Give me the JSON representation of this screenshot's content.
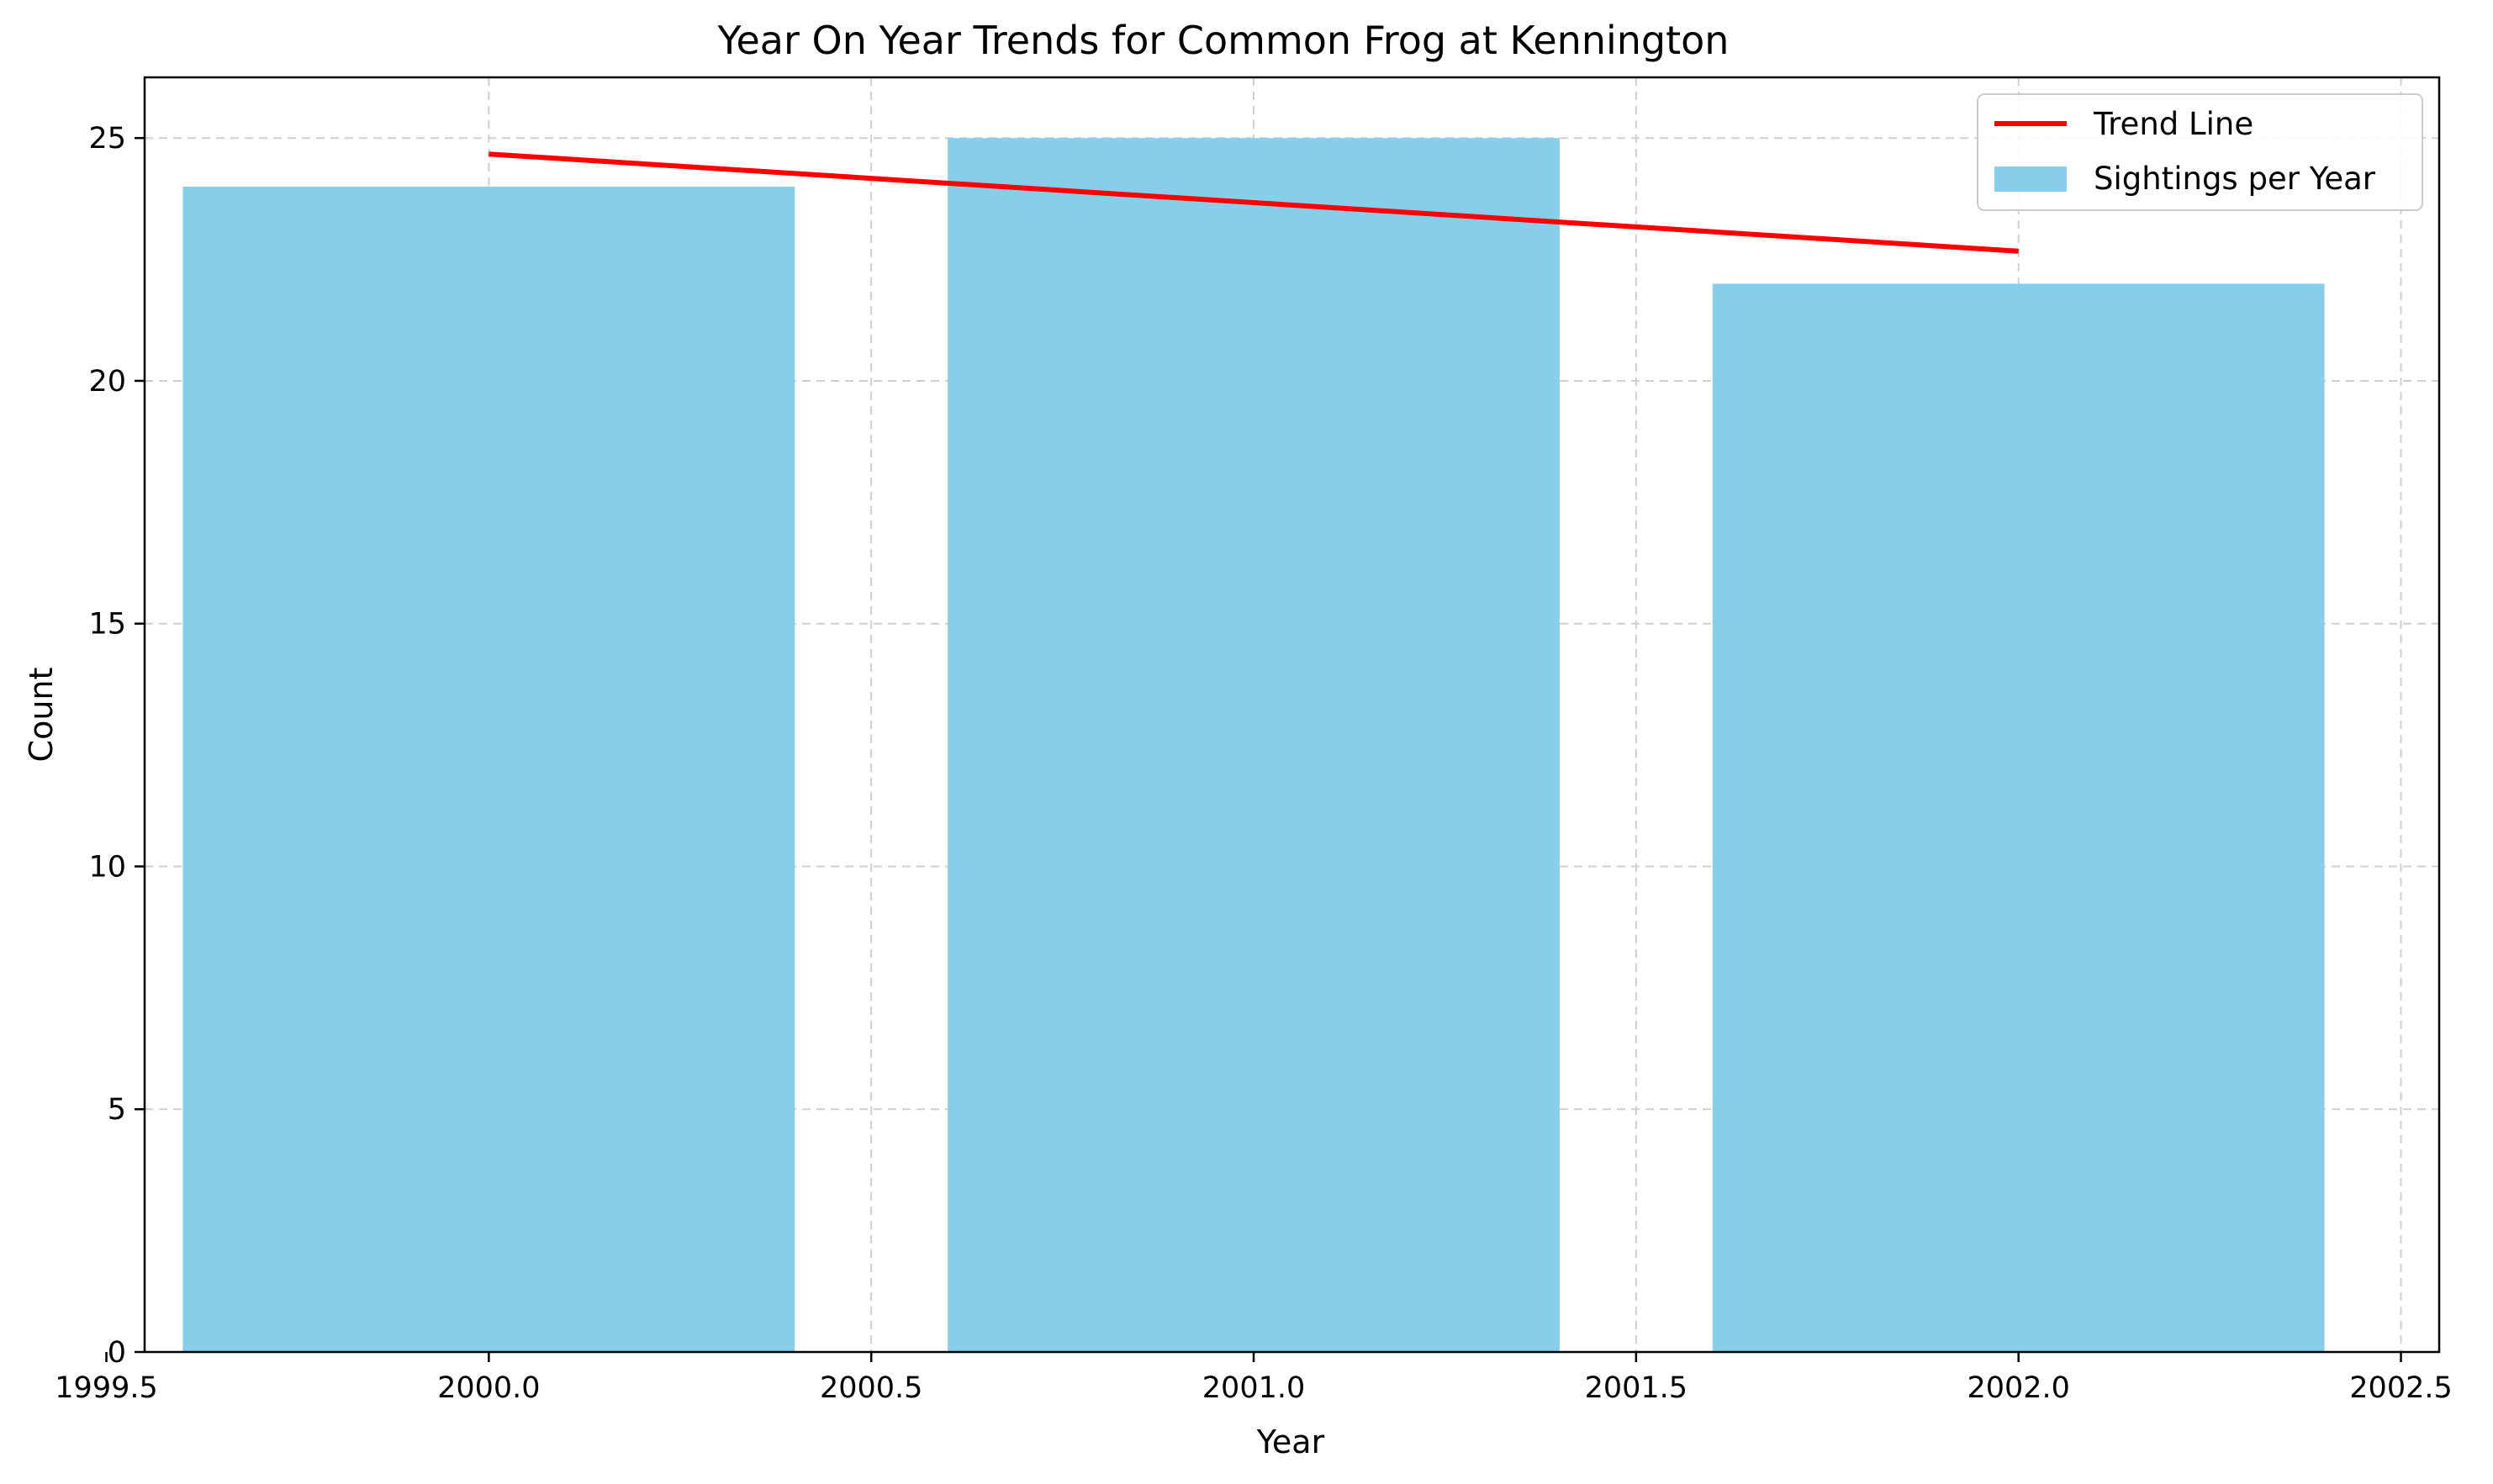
{
  "chart_data": {
    "type": "bar",
    "title": "Year On Year Trends for Common Frog at Kennington",
    "xlabel": "Year",
    "ylabel": "Count",
    "xlim": [
      1999.55,
      2002.55
    ],
    "ylim": [
      0,
      26.25
    ],
    "xticks": [
      "1999.5",
      "2000.0",
      "2000.5",
      "2001.0",
      "2001.5",
      "2002.0",
      "2002.5"
    ],
    "xtick_values": [
      1999.5,
      2000.0,
      2000.5,
      2001.0,
      2001.5,
      2002.0,
      2002.5
    ],
    "yticks": [
      "0",
      "5",
      "10",
      "15",
      "20",
      "25"
    ],
    "ytick_values": [
      0,
      5,
      10,
      15,
      20,
      25
    ],
    "grid": true,
    "legend_position": "top-right",
    "bar_width": 0.8,
    "series": [
      {
        "name": "Sightings per Year",
        "type": "bar",
        "color": "#87CEEB",
        "x": [
          2000,
          2001,
          2002
        ],
        "values": [
          24,
          25,
          22
        ]
      },
      {
        "name": "Trend Line",
        "type": "line",
        "color": "#FF0000",
        "x": [
          2000,
          2002
        ],
        "values": [
          24.67,
          22.67
        ]
      }
    ],
    "legend": [
      "Trend Line",
      "Sightings per Year"
    ]
  }
}
